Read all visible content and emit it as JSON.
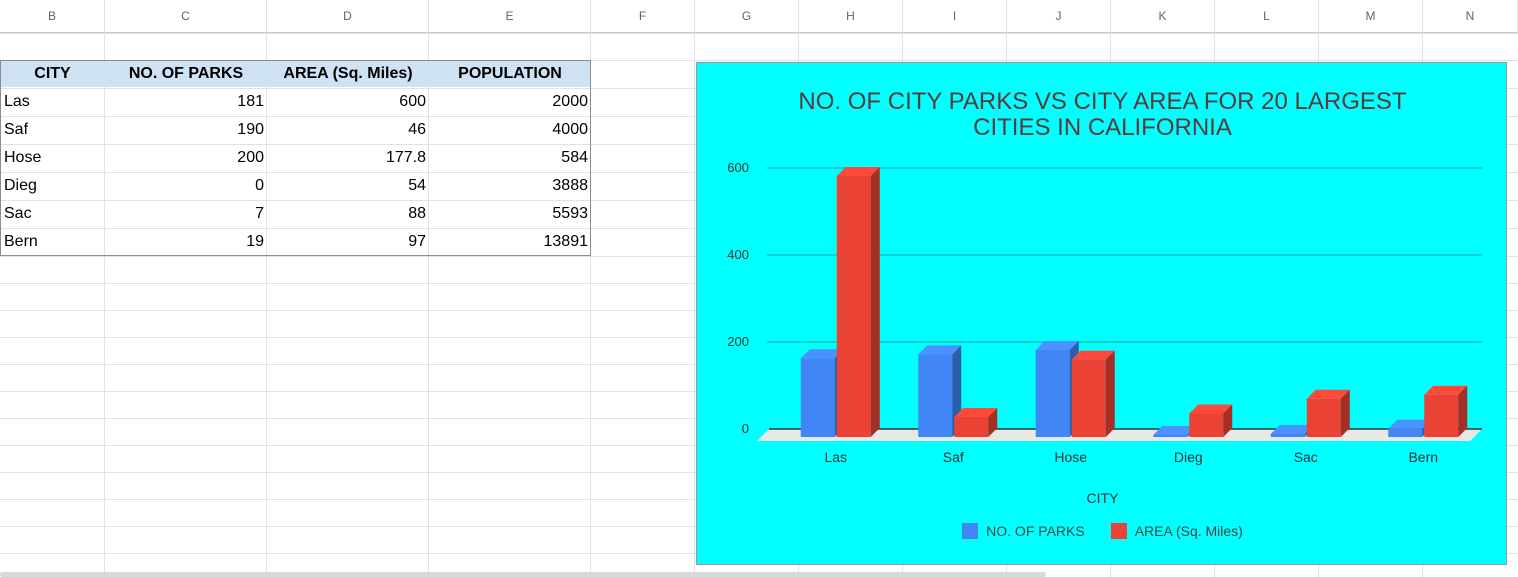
{
  "sheet": {
    "columns": [
      "B",
      "C",
      "D",
      "E",
      "F",
      "G",
      "H",
      "I",
      "J",
      "K",
      "L",
      "M",
      "N"
    ],
    "table": {
      "headers": [
        "CITY",
        "NO. OF PARKS",
        "AREA (Sq. Miles)",
        "POPULATION"
      ],
      "rows": [
        [
          "Las",
          "181",
          "600",
          "2000"
        ],
        [
          "Saf",
          "190",
          "46",
          "4000"
        ],
        [
          "Hose",
          "200",
          "177.8",
          "584"
        ],
        [
          "Dieg",
          "0",
          "54",
          "3888"
        ],
        [
          "Sac",
          "7",
          "88",
          "5593"
        ],
        [
          "Bern",
          "19",
          "97",
          "13891"
        ]
      ]
    }
  },
  "chart_data": {
    "type": "bar",
    "title": "NO. OF CITY PARKS VS CITY AREA FOR 20 LARGEST CITIES IN CALIFORNIA",
    "xlabel": "CITY",
    "ylabel": "",
    "categories": [
      "Las",
      "Saf",
      "Hose",
      "Dieg",
      "Sac",
      "Bern"
    ],
    "series": [
      {
        "name": "NO. OF PARKS",
        "values": [
          181,
          190,
          200,
          0,
          7,
          19
        ],
        "color": "#4285f4"
      },
      {
        "name": "AREA (Sq. Miles)",
        "values": [
          600,
          46,
          177.8,
          54,
          88,
          97
        ],
        "color": "#ea4335"
      }
    ],
    "ylim": [
      0,
      600
    ],
    "yticks": [
      "0",
      "200",
      "400",
      "600"
    ],
    "grid": true,
    "background": "#00ffff",
    "legend_position": "bottom",
    "style": "3d"
  }
}
